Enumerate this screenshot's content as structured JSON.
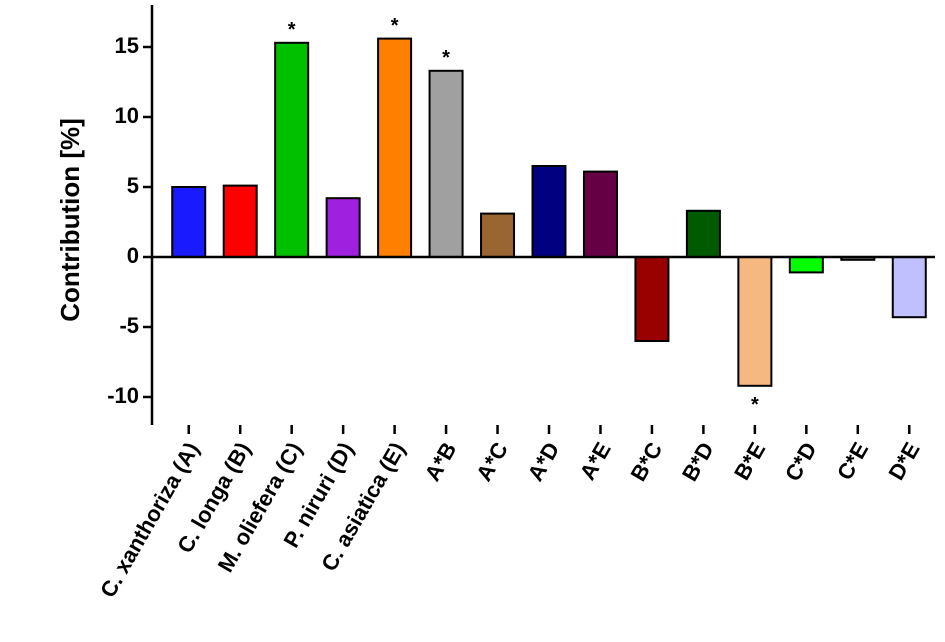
{
  "chart_data": {
    "type": "bar",
    "y_label": "Contribution [%]",
    "categories": [
      "C. xanthoriza (A)",
      "C. longa (B)",
      "M. oliefera (C)",
      "P. niruri (D)",
      "C. asiatica (E)",
      "A*B",
      "A*C",
      "A*D",
      "A*E",
      "B*C",
      "B*D",
      "B*E",
      "C*D",
      "C*E",
      "D*E"
    ],
    "values": [
      5.0,
      5.1,
      15.3,
      4.2,
      15.6,
      13.3,
      3.1,
      6.5,
      6.1,
      -6.0,
      3.3,
      -9.2,
      -1.1,
      -0.2,
      -4.3
    ],
    "colors": [
      "#1a1aff",
      "#ff0000",
      "#00c000",
      "#a020e0",
      "#ff8000",
      "#a0a0a0",
      "#996633",
      "#000080",
      "#660044",
      "#990000",
      "#005a00",
      "#f4b880",
      "#00ff00",
      "#808080",
      "#c0c0ff"
    ],
    "significance": [
      null,
      null,
      "*",
      null,
      "*",
      "*",
      null,
      null,
      null,
      null,
      null,
      "*",
      null,
      null,
      null
    ],
    "ylim": [
      -12,
      18
    ],
    "yticks": [
      -10,
      -5,
      0,
      5,
      10,
      15
    ]
  }
}
